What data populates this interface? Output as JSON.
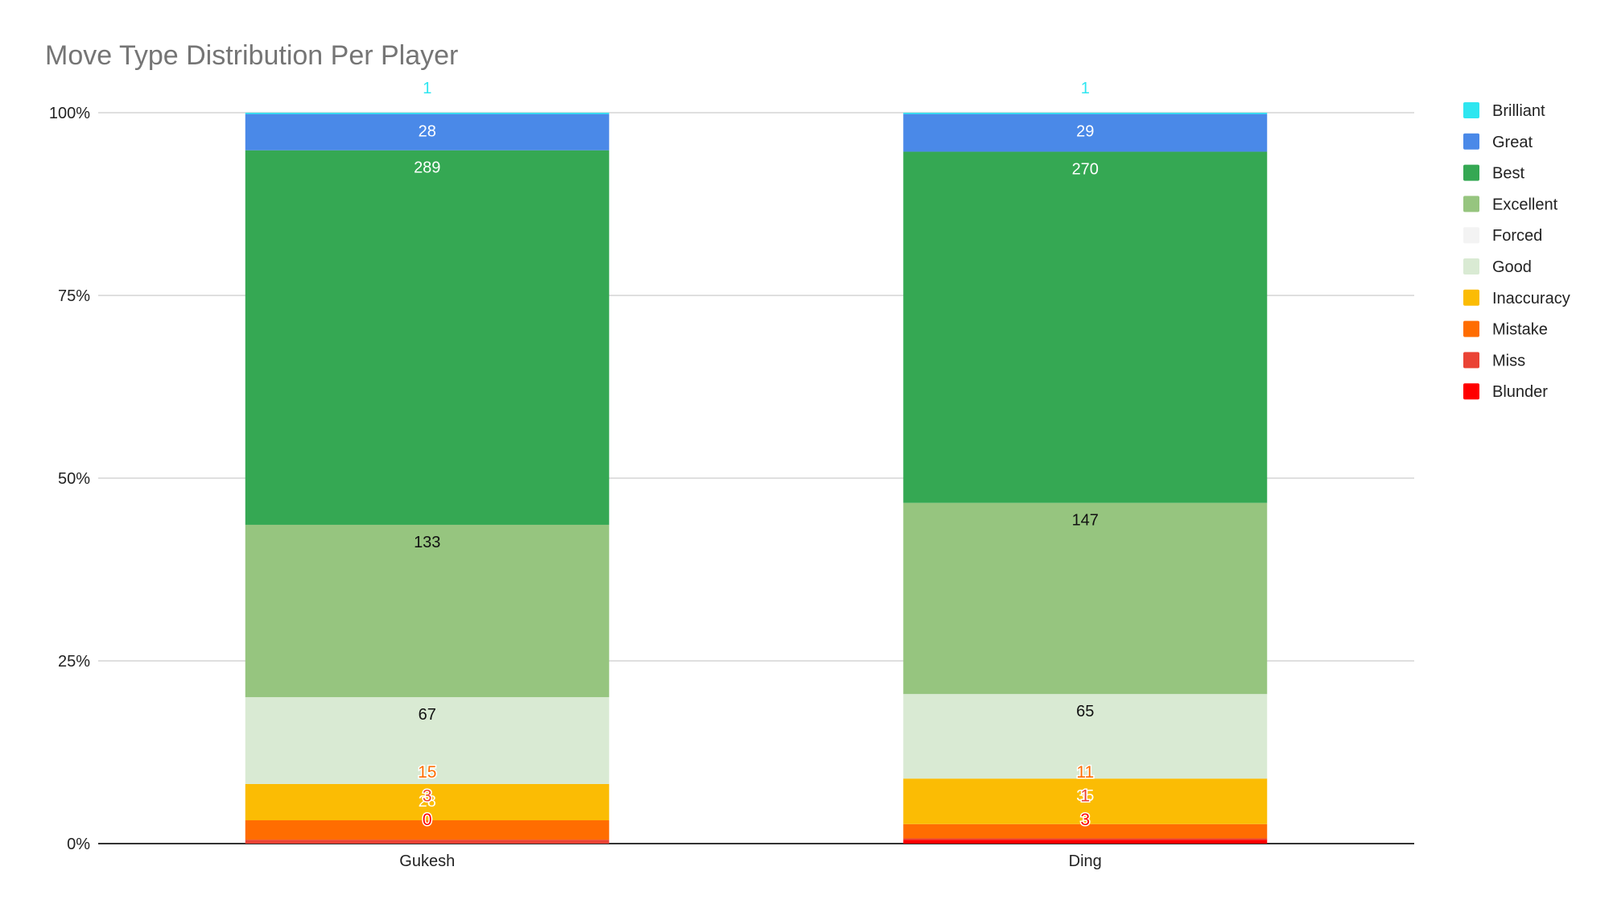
{
  "chart_data": {
    "type": "bar",
    "stacked": "percent",
    "title": "Move Type Distribution Per Player",
    "xlabel": "",
    "ylabel": "",
    "ylim": [
      0,
      100
    ],
    "y_ticks": [
      "0%",
      "25%",
      "50%",
      "75%",
      "100%"
    ],
    "categories": [
      "Gukesh",
      "Ding"
    ],
    "grid": true,
    "legend_position": "right",
    "series": [
      {
        "name": "Brilliant",
        "color": "#2ee6f0",
        "values": [
          1,
          1
        ]
      },
      {
        "name": "Great",
        "color": "#4a89e8",
        "values": [
          28,
          29
        ]
      },
      {
        "name": "Best",
        "color": "#35a853",
        "values": [
          289,
          270
        ]
      },
      {
        "name": "Excellent",
        "color": "#96c57f",
        "values": [
          133,
          147
        ]
      },
      {
        "name": "Forced",
        "color": "#f3f3f3",
        "values": [
          0,
          0
        ]
      },
      {
        "name": "Good",
        "color": "#d9ead3",
        "values": [
          67,
          65
        ]
      },
      {
        "name": "Inaccuracy",
        "color": "#fbbc04",
        "values": [
          28,
          35
        ]
      },
      {
        "name": "Mistake",
        "color": "#ff6d01",
        "values": [
          15,
          11
        ]
      },
      {
        "name": "Miss",
        "color": "#ea4335",
        "values": [
          3,
          1
        ]
      },
      {
        "name": "Blunder",
        "color": "#ff0000",
        "values": [
          0,
          3
        ]
      }
    ]
  }
}
